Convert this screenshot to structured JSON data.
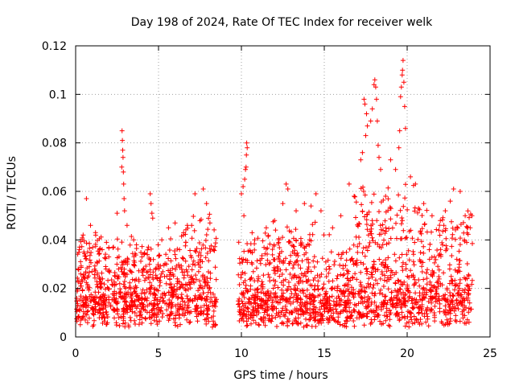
{
  "chart_data": {
    "type": "scatter",
    "title": "Day 198 of 2024, Rate Of TEC Index for receiver welk",
    "xlabel": "GPS time / hours",
    "ylabel": "ROTI / TECUs",
    "xlim": [
      0,
      25
    ],
    "ylim": [
      0,
      0.12
    ],
    "xticks": [
      0,
      5,
      10,
      15,
      20,
      25
    ],
    "yticks": [
      0,
      0.02,
      0.04,
      0.06,
      0.08,
      0.1,
      0.12
    ],
    "xtick_labels": [
      "0",
      "5",
      "10",
      "15",
      "20",
      "25"
    ],
    "ytick_labels": [
      "0",
      "0.02",
      "0.04",
      "0.06",
      "0.08",
      "0.1",
      "0.12"
    ],
    "grid": true,
    "marker": "+",
    "series": [
      {
        "name": "ROTI",
        "color": "#ff0000",
        "gap_hours": [
          8.5,
          9.8
        ],
        "points": [
          [
            0.15,
            0.028
          ],
          [
            0.3,
            0.026
          ],
          [
            0.45,
            0.042
          ],
          [
            0.65,
            0.057
          ],
          [
            0.9,
            0.046
          ],
          [
            1.2,
            0.043
          ],
          [
            1.6,
            0.036
          ],
          [
            2.0,
            0.033
          ],
          [
            2.5,
            0.051
          ],
          [
            2.8,
            0.085
          ],
          [
            2.82,
            0.081
          ],
          [
            2.84,
            0.077
          ],
          [
            2.86,
            0.074
          ],
          [
            2.78,
            0.07
          ],
          [
            2.88,
            0.068
          ],
          [
            2.9,
            0.063
          ],
          [
            2.92,
            0.057
          ],
          [
            2.95,
            0.052
          ],
          [
            3.1,
            0.046
          ],
          [
            3.5,
            0.04
          ],
          [
            4.0,
            0.033
          ],
          [
            4.5,
            0.059
          ],
          [
            4.55,
            0.055
          ],
          [
            4.6,
            0.051
          ],
          [
            4.65,
            0.049
          ],
          [
            5.2,
            0.04
          ],
          [
            5.6,
            0.045
          ],
          [
            6.0,
            0.047
          ],
          [
            6.5,
            0.042
          ],
          [
            7.0,
            0.046
          ],
          [
            7.2,
            0.059
          ],
          [
            7.7,
            0.061
          ],
          [
            7.9,
            0.055
          ],
          [
            8.1,
            0.047
          ],
          [
            10.0,
            0.059
          ],
          [
            10.1,
            0.062
          ],
          [
            10.2,
            0.065
          ],
          [
            10.25,
            0.069
          ],
          [
            10.3,
            0.075
          ],
          [
            10.32,
            0.08
          ],
          [
            10.35,
            0.078
          ],
          [
            10.28,
            0.07
          ],
          [
            10.15,
            0.05
          ],
          [
            10.8,
            0.04
          ],
          [
            11.5,
            0.045
          ],
          [
            12.0,
            0.048
          ],
          [
            12.5,
            0.055
          ],
          [
            12.7,
            0.063
          ],
          [
            12.8,
            0.061
          ],
          [
            13.3,
            0.052
          ],
          [
            13.8,
            0.055
          ],
          [
            14.2,
            0.054
          ],
          [
            14.5,
            0.059
          ],
          [
            14.8,
            0.052
          ],
          [
            15.5,
            0.045
          ],
          [
            16.0,
            0.05
          ],
          [
            16.5,
            0.063
          ],
          [
            16.8,
            0.058
          ],
          [
            17.2,
            0.073
          ],
          [
            17.3,
            0.076
          ],
          [
            17.5,
            0.083
          ],
          [
            17.6,
            0.087
          ],
          [
            17.8,
            0.089
          ],
          [
            17.9,
            0.094
          ],
          [
            17.4,
            0.098
          ],
          [
            17.45,
            0.096
          ],
          [
            17.55,
            0.092
          ],
          [
            18.0,
            0.104
          ],
          [
            18.05,
            0.106
          ],
          [
            18.1,
            0.103
          ],
          [
            18.15,
            0.098
          ],
          [
            18.2,
            0.089
          ],
          [
            18.25,
            0.079
          ],
          [
            18.3,
            0.074
          ],
          [
            18.4,
            0.069
          ],
          [
            18.7,
            0.058
          ],
          [
            19.0,
            0.073
          ],
          [
            19.3,
            0.069
          ],
          [
            19.5,
            0.078
          ],
          [
            19.6,
            0.099
          ],
          [
            19.65,
            0.103
          ],
          [
            19.7,
            0.108
          ],
          [
            19.72,
            0.11
          ],
          [
            19.75,
            0.114
          ],
          [
            19.8,
            0.105
          ],
          [
            19.85,
            0.095
          ],
          [
            19.9,
            0.086
          ],
          [
            19.55,
            0.085
          ],
          [
            20.2,
            0.066
          ],
          [
            20.5,
            0.063
          ],
          [
            21.0,
            0.055
          ],
          [
            21.5,
            0.05
          ],
          [
            22.0,
            0.048
          ],
          [
            22.3,
            0.052
          ],
          [
            22.6,
            0.056
          ],
          [
            22.8,
            0.061
          ],
          [
            23.2,
            0.06
          ],
          [
            23.5,
            0.05
          ],
          [
            23.8,
            0.045
          ]
        ]
      }
    ]
  }
}
